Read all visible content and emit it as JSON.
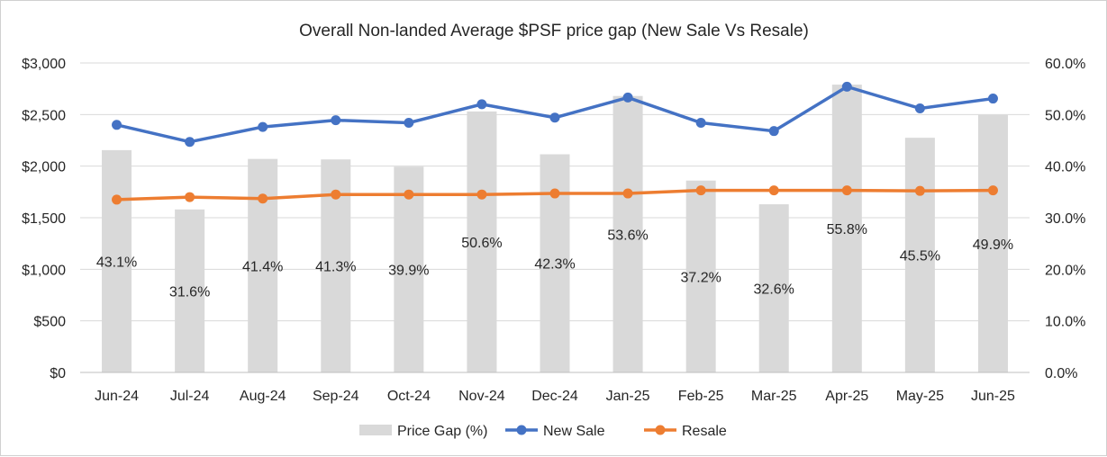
{
  "chart_data": {
    "type": "bar",
    "title": "Overall Non-landed Average $PSF price gap (New Sale Vs Resale)",
    "categories": [
      "Jun-24",
      "Jul-24",
      "Aug-24",
      "Sep-24",
      "Oct-24",
      "Nov-24",
      "Dec-24",
      "Jan-25",
      "Feb-25",
      "Mar-25",
      "Apr-25",
      "May-25",
      "Jun-25"
    ],
    "y_left": {
      "ylim": [
        0,
        3000
      ],
      "ticks": [
        0,
        500,
        1000,
        1500,
        2000,
        2500,
        3000
      ],
      "tick_labels": [
        "$0",
        "$500",
        "$1,000",
        "$1,500",
        "$2,000",
        "$2,500",
        "$3,000"
      ]
    },
    "y_right": {
      "ylim": [
        0,
        60
      ],
      "ticks": [
        0,
        10,
        20,
        30,
        40,
        50,
        60
      ],
      "tick_labels": [
        "0.0%",
        "10.0%",
        "20.0%",
        "30.0%",
        "40.0%",
        "50.0%",
        "60.0%"
      ]
    },
    "series": [
      {
        "name": "Price Gap (%)",
        "type": "bar",
        "axis": "right",
        "color": "#d9d9d9",
        "values": [
          43.1,
          31.6,
          41.4,
          41.3,
          39.9,
          50.6,
          42.3,
          53.6,
          37.2,
          32.6,
          55.8,
          45.5,
          49.9
        ],
        "labels": [
          "43.1%",
          "31.6%",
          "41.4%",
          "41.3%",
          "39.9%",
          "50.6%",
          "42.3%",
          "53.6%",
          "37.2%",
          "32.6%",
          "55.8%",
          "45.5%",
          "49.9%"
        ]
      },
      {
        "name": "New Sale",
        "type": "line",
        "axis": "left",
        "color": "#4472c4",
        "values": [
          2400,
          2235,
          2380,
          2445,
          2420,
          2600,
          2470,
          2665,
          2420,
          2340,
          2770,
          2560,
          2655
        ]
      },
      {
        "name": "Resale",
        "type": "line",
        "axis": "left",
        "color": "#ed7d31",
        "values": [
          1675,
          1700,
          1685,
          1725,
          1725,
          1725,
          1735,
          1735,
          1765,
          1765,
          1765,
          1760,
          1765
        ]
      }
    ],
    "legend": "bottom",
    "grid": true
  }
}
